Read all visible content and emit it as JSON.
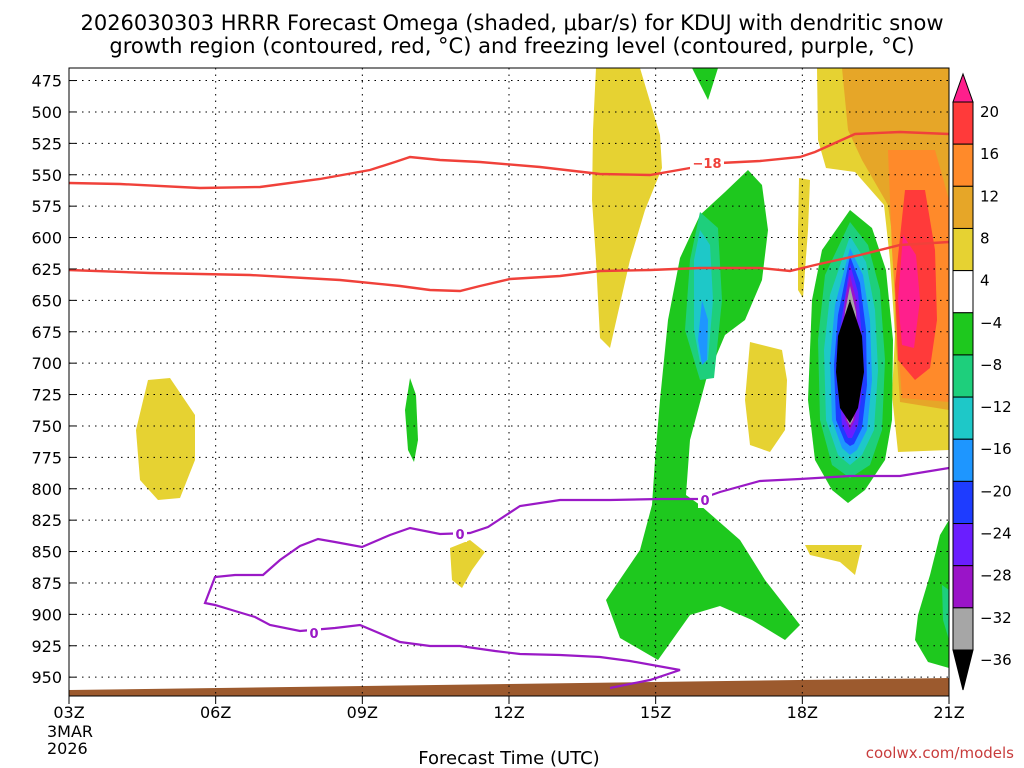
{
  "chart_data": {
    "type": "time-height cross section",
    "title_line1": "2026030303 HRRR Forecast Omega (shaded, μbar/s) for KDUJ with dendritic snow",
    "title_line2": "growth region (contoured, red, °C) and freezing level (contoured, purple, °C)",
    "xlabel": "Forecast Time (UTC)",
    "x_ticks": [
      "03Z",
      "06Z",
      "09Z",
      "12Z",
      "15Z",
      "18Z",
      "21Z"
    ],
    "x_first_date": [
      "3MAR",
      "2026"
    ],
    "y_ticks": [
      "475",
      "500",
      "525",
      "550",
      "575",
      "600",
      "625",
      "650",
      "675",
      "700",
      "725",
      "750",
      "775",
      "800",
      "825",
      "850",
      "875",
      "900",
      "925",
      "950"
    ],
    "ylim_hpa": [
      965,
      465
    ],
    "colorbar": {
      "labels": [
        "20",
        "16",
        "12",
        "8",
        "4",
        "−4",
        "−8",
        "−12",
        "−16",
        "−20",
        "−24",
        "−28",
        "−32",
        "−36"
      ],
      "colors": [
        "#ff1f8c",
        "#ff3a3a",
        "#ff8a2a",
        "#e6a628",
        "#e6d232",
        "#ffffff",
        "#1ec81e",
        "#1ecf7c",
        "#1ec8c8",
        "#1e96ff",
        "#1e3cff",
        "#6a1eff",
        "#9a14c8",
        "#a6a6a6",
        "#000000"
      ]
    },
    "contours": {
      "dendritic_upper_label": "−18",
      "freezing_level_labels": [
        "0",
        "0",
        "0"
      ]
    },
    "colors": {
      "dgz": "#f0413a",
      "freezing": "#9a19c6",
      "ground": "#9c5a2e"
    },
    "credit": "coolwx.com/models"
  }
}
